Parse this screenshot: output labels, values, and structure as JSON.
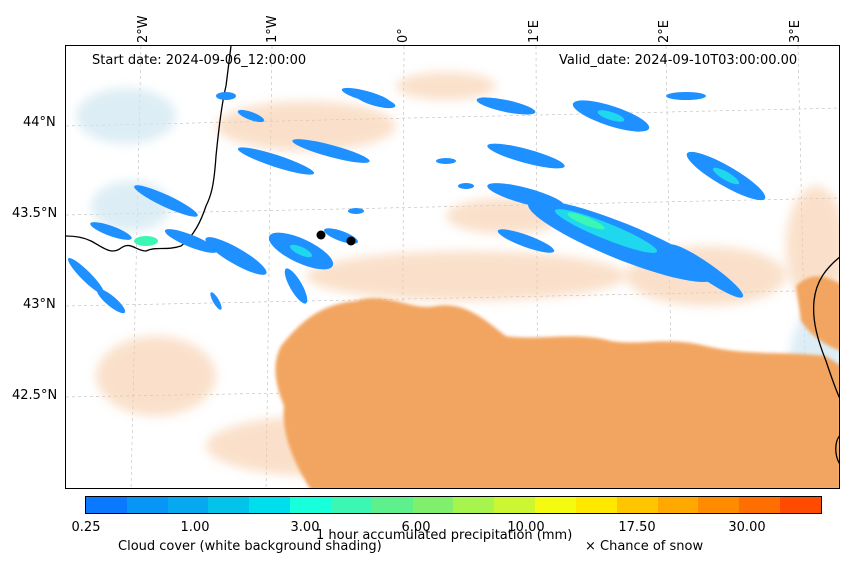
{
  "header": {
    "start_date": "Start date: 2024-09-06_12:00:00",
    "valid_date": "Valid_date: 2024-09-10T03:00:00.00"
  },
  "axes": {
    "longitude_labels": [
      "2°W",
      "1°W",
      "0°",
      "1°E",
      "2°E",
      "3°E"
    ],
    "latitude_labels": [
      "44°N",
      "43.5°N",
      "43°N",
      "42.5°N"
    ]
  },
  "colorbar": {
    "label": "1 hour accumulated precipitation (mm)",
    "tick_labels": [
      "0.25",
      "1.00",
      "3.00",
      "6.00",
      "10.00",
      "17.50",
      "30.00"
    ],
    "colors": [
      "#0a78ff",
      "#0896f6",
      "#06a9f0",
      "#03c3eb",
      "#00dded",
      "#18ffdc",
      "#3cf6b3",
      "#5df08d",
      "#80ef6c",
      "#a7f44e",
      "#ccf532",
      "#f5fb10",
      "#ffe800",
      "#ffc600",
      "#ffa800",
      "#ff8c00",
      "#ff6e00",
      "#ff4b00"
    ]
  },
  "legend": {
    "cloud_cover": "Cloud cover (white background shading)",
    "snow": "× Chance of snow"
  },
  "map_colors": {
    "land_shading": "#f2a561",
    "light_shading": "#f6c8a0",
    "snow_shading": "#cfe6f1",
    "precip_light": "#1e90ff",
    "precip_mid": "#20d8ee",
    "precip_high": "#3cf6b3"
  }
}
